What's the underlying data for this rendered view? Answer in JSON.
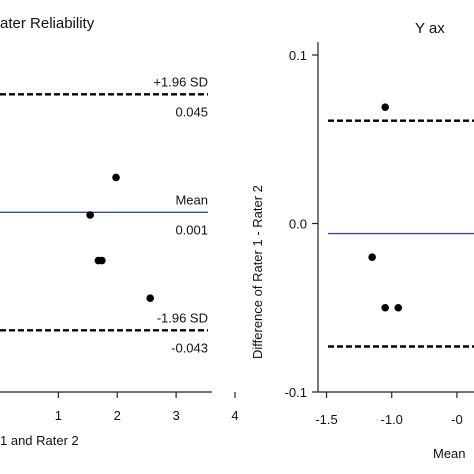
{
  "chart_data": [
    {
      "type": "scatter",
      "title": "ater Reliability",
      "xlabel": "1 and Rater 2",
      "ylabel": "",
      "xlim": [
        -0.5,
        4.0
      ],
      "ylim": [
        -0.066,
        0.0645
      ],
      "x_ticks": [
        "1",
        "2",
        "3",
        "4"
      ],
      "y_ticks": [],
      "points": [
        {
          "x": 1.98,
          "y": 0.014
        },
        {
          "x": 1.54,
          "y": 0.0
        },
        {
          "x": 1.68,
          "y": -0.017
        },
        {
          "x": 1.74,
          "y": -0.017
        },
        {
          "x": 2.56,
          "y": -0.031
        }
      ],
      "reference_lines": [
        {
          "label": "+1.96 SD",
          "value": 0.045,
          "value_label": "0.045",
          "style": "dashed"
        },
        {
          "label": "Mean",
          "value": 0.001,
          "value_label": "0.001",
          "style": "solid"
        },
        {
          "label": "-1.96 SD",
          "value": -0.043,
          "value_label": "-0.043",
          "style": "dashed"
        }
      ],
      "grid": false,
      "colors": {
        "mean_line": "#3b4ba8",
        "points": "#000000"
      }
    },
    {
      "type": "scatter",
      "title": "Y ax",
      "xlabel": "Mean",
      "ylabel": "Difference of Rater 1 -  Rater 2",
      "xlim": [
        -1.55,
        -0.3
      ],
      "ylim": [
        -0.1,
        0.1
      ],
      "x_ticks": [
        "-1.5",
        "-1.0",
        "-0"
      ],
      "y_ticks": [
        "0.1",
        "0.0",
        "-0.1"
      ],
      "points": [
        {
          "x": -1.05,
          "y": 0.069
        },
        {
          "x": -1.15,
          "y": -0.02
        },
        {
          "x": -1.05,
          "y": -0.05
        },
        {
          "x": -0.95,
          "y": -0.05
        }
      ],
      "reference_lines": [
        {
          "value": 0.061,
          "style": "dashed"
        },
        {
          "value": -0.006,
          "style": "solid"
        },
        {
          "value": -0.073,
          "style": "dashed"
        }
      ],
      "grid": false,
      "colors": {
        "mean_line": "#3b4ba8",
        "points": "#000000"
      }
    }
  ]
}
